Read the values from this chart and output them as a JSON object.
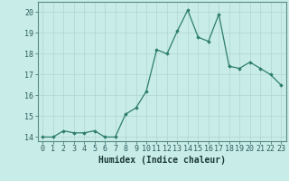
{
  "title": "",
  "xlabel": "Humidex (Indice chaleur)",
  "ylabel": "",
  "x_values": [
    0,
    1,
    2,
    3,
    4,
    5,
    6,
    7,
    8,
    9,
    10,
    11,
    12,
    13,
    14,
    15,
    16,
    17,
    18,
    19,
    20,
    21,
    22,
    23
  ],
  "y_values": [
    14.0,
    14.0,
    14.3,
    14.2,
    14.2,
    14.3,
    14.0,
    14.0,
    15.1,
    15.4,
    16.2,
    18.2,
    18.0,
    19.1,
    20.1,
    18.8,
    18.6,
    19.9,
    17.4,
    17.3,
    17.6,
    17.3,
    17.0,
    16.5
  ],
  "line_color": "#2e7d6e",
  "marker": "D",
  "marker_size": 1.8,
  "bg_color": "#c8ece8",
  "grid_color": "#b0d4d0",
  "spine_color": "#5a8a84",
  "tick_color": "#2e5e5e",
  "label_color": "#1a3a3a",
  "ylim": [
    13.8,
    20.5
  ],
  "yticks": [
    14,
    15,
    16,
    17,
    18,
    19,
    20
  ],
  "xlim": [
    -0.5,
    23.5
  ],
  "xlabel_fontsize": 7.0,
  "tick_fontsize": 6.0,
  "linewidth": 0.9
}
